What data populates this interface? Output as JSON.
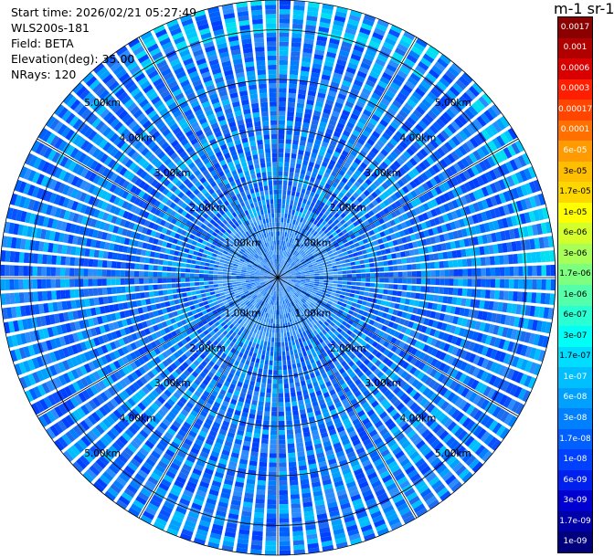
{
  "header": {
    "start_time": "Start time: 2026/02/21 05:27:49",
    "instrument": "WLS200s-181",
    "field": "Field: BETA",
    "elevation": "Elevation(deg): 35.00",
    "nrays": "NRays: 120"
  },
  "colorbar": {
    "unit_title": "m-1 sr-1",
    "labels": [
      "0.0017",
      "0.001",
      "0.0006",
      "0.0003",
      "0.00017",
      "0.0001",
      "6e-05",
      "3e-05",
      "1.7e-05",
      "1e-05",
      "6e-06",
      "3e-06",
      "1.7e-06",
      "1e-06",
      "6e-07",
      "3e-07",
      "1.7e-07",
      "1e-07",
      "6e-08",
      "3e-08",
      "1.7e-08",
      "1e-08",
      "6e-09",
      "3e-09",
      "1.7e-09",
      "1e-09"
    ],
    "colors": [
      "#8b0000",
      "#b00000",
      "#d80000",
      "#ff1e00",
      "#ff4500",
      "#ff7000",
      "#ff9a00",
      "#ffbe00",
      "#ffd700",
      "#ffff00",
      "#d4ff2a",
      "#a8ff57",
      "#7dff80",
      "#55ffaa",
      "#2affd4",
      "#00fff7",
      "#00ddff",
      "#00bfff",
      "#00a0ff",
      "#0080ff",
      "#0060ff",
      "#0040ff",
      "#0020ee",
      "#0000d0",
      "#0000a8",
      "#00007f"
    ],
    "label_colors": [
      "#ffffff",
      "#ffffff",
      "#ffffff",
      "#ffffff",
      "#ffffff",
      "#ffffff",
      "#ffffff",
      "#000000",
      "#000000",
      "#000000",
      "#000000",
      "#000000",
      "#000000",
      "#000000",
      "#000000",
      "#000000",
      "#000000",
      "#ffffff",
      "#ffffff",
      "#ffffff",
      "#ffffff",
      "#ffffff",
      "#ffffff",
      "#ffffff",
      "#ffffff",
      "#ffffff"
    ]
  },
  "chart_data": {
    "type": "heatmap",
    "projection": "polar-ppi",
    "field": "BETA",
    "nrays": 120,
    "elevation_deg": 35.0,
    "range_km": [
      0,
      5.6
    ],
    "range_ring_labels": [
      "1.00km",
      "2.00km",
      "3.00km",
      "4.00km",
      "5.00km"
    ],
    "grid": true,
    "value_min": 1e-09,
    "value_max": 0.0017,
    "typical_value_range": [
      1e-08,
      1e-07
    ]
  }
}
